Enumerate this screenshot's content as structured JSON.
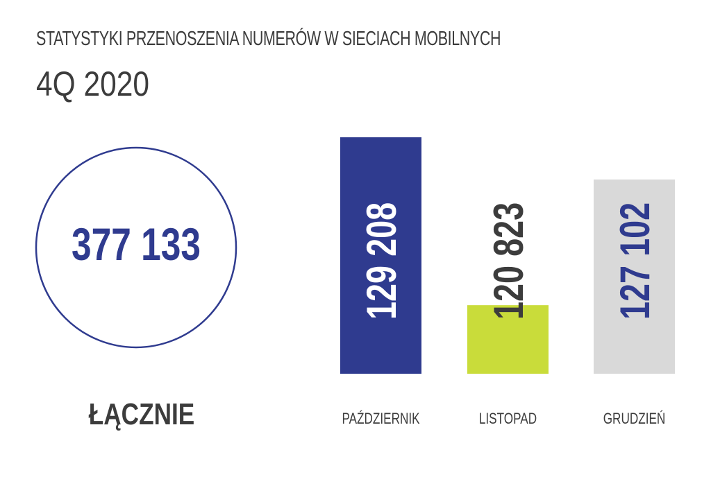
{
  "header": {
    "title": "STATYSTYKI PRZENOSZENIA NUMERÓW W SIECIACH MOBILNYCH",
    "subtitle": "4Q 2020"
  },
  "total": {
    "label": "ŁĄCZNIE",
    "value_label": "377 133",
    "value": 377133
  },
  "colors": {
    "accent_blue": "#2f3b8f",
    "accent_green": "#c9dc3a",
    "light_gray": "#d9d9d9",
    "text_dark": "#3c3c3c"
  },
  "chart_data": {
    "type": "bar",
    "title": "STATYSTYKI PRZENOSZENIA NUMERÓW W SIECIACH MOBILNYCH",
    "subtitle": "4Q 2020",
    "categories": [
      "PAŹDZIERNIK",
      "LISTOPAD",
      "GRUDZIEŃ"
    ],
    "values": [
      129208,
      120823,
      127102
    ],
    "value_labels": [
      "129 208",
      "120 823",
      "127 102"
    ],
    "bar_colors": [
      "#2f3b8f",
      "#c9dc3a",
      "#d9d9d9"
    ],
    "label_colors": [
      "#ffffff",
      "#3c3c3c",
      "#2f3b8f"
    ],
    "axis": "none",
    "grid": false,
    "legend": "none"
  }
}
